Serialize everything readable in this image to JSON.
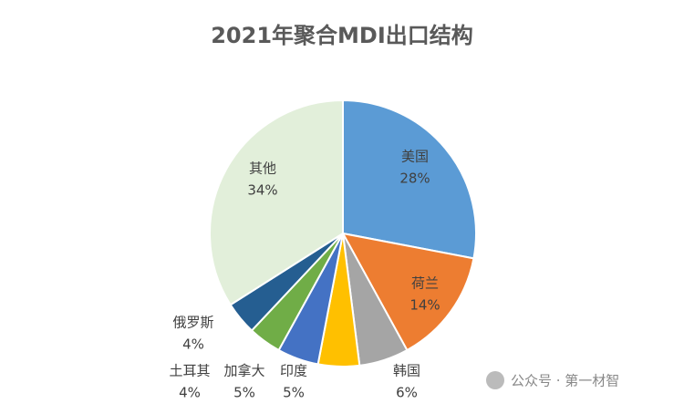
{
  "chart_data": {
    "type": "pie",
    "title": "2021年聚合MDI出口结构",
    "categories": [
      "美国",
      "荷兰",
      "韩国",
      "印度",
      "加拿大",
      "土耳其",
      "俄罗斯",
      "其他"
    ],
    "values": [
      28,
      14,
      6,
      5,
      5,
      4,
      4,
      34
    ],
    "value_labels": [
      "28%",
      "14%",
      "6%",
      "5%",
      "5%",
      "4%",
      "4%",
      "34%"
    ],
    "colors": [
      "#5b9bd5",
      "#ed7d31",
      "#a5a5a5",
      "#ffc000",
      "#4472c4",
      "#70ad47",
      "#255e91",
      "#e2efda"
    ]
  },
  "watermark": "公众号 · 第一材智"
}
